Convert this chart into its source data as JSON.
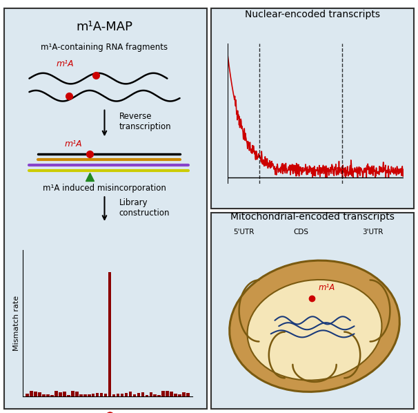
{
  "bg_color_left": "#dce8f0",
  "bg_color_right": "#dce8f0",
  "border_color": "#333333",
  "red_color": "#cc0000",
  "dark_red": "#8b0000",
  "title_left": "m¹A-MAP",
  "title_right_top": "Nuclear-encoded transcripts",
  "title_right_bottom": "Mitochondrial-encoded transcripts",
  "label_m1A": "m¹A",
  "label_reverse": "Reverse\ntranscription",
  "label_misincorp": "m¹A induced misincorporation",
  "label_library": "Library\nconstruction",
  "label_mismatch": "Mismatch rate",
  "label_m1A_bottom": "m¹A",
  "label_5utr": "5'UTR",
  "label_cds": "CDS",
  "label_3utr": "3'UTR",
  "label_containing": "m¹A-containing RNA fragments",
  "blue_dark": "#1a3a7a",
  "mito_outer": "#c8964a",
  "mito_inner": "#f5e6b8",
  "rna_wave_color": "#1a3a7a",
  "orange_line": "#cc8800",
  "purple_line": "#8844cc",
  "yellow_line": "#cccc00",
  "green_tri": "#228822"
}
